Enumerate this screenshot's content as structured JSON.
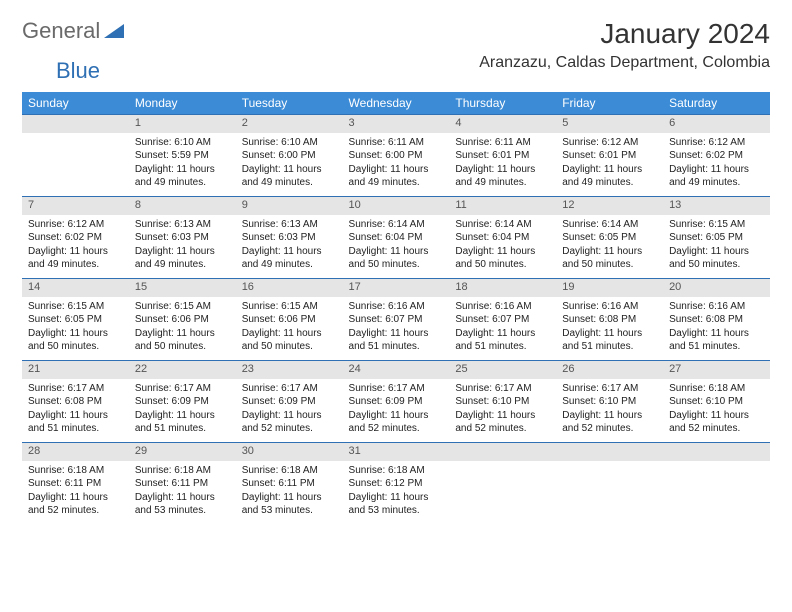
{
  "brand": {
    "general": "General",
    "blue": "Blue",
    "triangle_color": "#2f6fb3"
  },
  "title": "January 2024",
  "location": "Aranzazu, Caldas Department, Colombia",
  "colors": {
    "header_bg": "#3b8bd6",
    "header_text": "#ffffff",
    "daynum_bg": "#e5e5e5",
    "daynum_border": "#2f6fb3",
    "body_text": "#222222"
  },
  "fonts": {
    "title_size_pt": 21,
    "location_size_pt": 12,
    "weekday_size_pt": 9,
    "daynum_size_pt": 8,
    "detail_size_pt": 7.5
  },
  "weekdays": [
    "Sunday",
    "Monday",
    "Tuesday",
    "Wednesday",
    "Thursday",
    "Friday",
    "Saturday"
  ],
  "weeks": [
    [
      null,
      {
        "n": "1",
        "sunrise": "6:10 AM",
        "sunset": "5:59 PM",
        "daylight": "11 hours and 49 minutes."
      },
      {
        "n": "2",
        "sunrise": "6:10 AM",
        "sunset": "6:00 PM",
        "daylight": "11 hours and 49 minutes."
      },
      {
        "n": "3",
        "sunrise": "6:11 AM",
        "sunset": "6:00 PM",
        "daylight": "11 hours and 49 minutes."
      },
      {
        "n": "4",
        "sunrise": "6:11 AM",
        "sunset": "6:01 PM",
        "daylight": "11 hours and 49 minutes."
      },
      {
        "n": "5",
        "sunrise": "6:12 AM",
        "sunset": "6:01 PM",
        "daylight": "11 hours and 49 minutes."
      },
      {
        "n": "6",
        "sunrise": "6:12 AM",
        "sunset": "6:02 PM",
        "daylight": "11 hours and 49 minutes."
      }
    ],
    [
      {
        "n": "7",
        "sunrise": "6:12 AM",
        "sunset": "6:02 PM",
        "daylight": "11 hours and 49 minutes."
      },
      {
        "n": "8",
        "sunrise": "6:13 AM",
        "sunset": "6:03 PM",
        "daylight": "11 hours and 49 minutes."
      },
      {
        "n": "9",
        "sunrise": "6:13 AM",
        "sunset": "6:03 PM",
        "daylight": "11 hours and 49 minutes."
      },
      {
        "n": "10",
        "sunrise": "6:14 AM",
        "sunset": "6:04 PM",
        "daylight": "11 hours and 50 minutes."
      },
      {
        "n": "11",
        "sunrise": "6:14 AM",
        "sunset": "6:04 PM",
        "daylight": "11 hours and 50 minutes."
      },
      {
        "n": "12",
        "sunrise": "6:14 AM",
        "sunset": "6:05 PM",
        "daylight": "11 hours and 50 minutes."
      },
      {
        "n": "13",
        "sunrise": "6:15 AM",
        "sunset": "6:05 PM",
        "daylight": "11 hours and 50 minutes."
      }
    ],
    [
      {
        "n": "14",
        "sunrise": "6:15 AM",
        "sunset": "6:05 PM",
        "daylight": "11 hours and 50 minutes."
      },
      {
        "n": "15",
        "sunrise": "6:15 AM",
        "sunset": "6:06 PM",
        "daylight": "11 hours and 50 minutes."
      },
      {
        "n": "16",
        "sunrise": "6:15 AM",
        "sunset": "6:06 PM",
        "daylight": "11 hours and 50 minutes."
      },
      {
        "n": "17",
        "sunrise": "6:16 AM",
        "sunset": "6:07 PM",
        "daylight": "11 hours and 51 minutes."
      },
      {
        "n": "18",
        "sunrise": "6:16 AM",
        "sunset": "6:07 PM",
        "daylight": "11 hours and 51 minutes."
      },
      {
        "n": "19",
        "sunrise": "6:16 AM",
        "sunset": "6:08 PM",
        "daylight": "11 hours and 51 minutes."
      },
      {
        "n": "20",
        "sunrise": "6:16 AM",
        "sunset": "6:08 PM",
        "daylight": "11 hours and 51 minutes."
      }
    ],
    [
      {
        "n": "21",
        "sunrise": "6:17 AM",
        "sunset": "6:08 PM",
        "daylight": "11 hours and 51 minutes."
      },
      {
        "n": "22",
        "sunrise": "6:17 AM",
        "sunset": "6:09 PM",
        "daylight": "11 hours and 51 minutes."
      },
      {
        "n": "23",
        "sunrise": "6:17 AM",
        "sunset": "6:09 PM",
        "daylight": "11 hours and 52 minutes."
      },
      {
        "n": "24",
        "sunrise": "6:17 AM",
        "sunset": "6:09 PM",
        "daylight": "11 hours and 52 minutes."
      },
      {
        "n": "25",
        "sunrise": "6:17 AM",
        "sunset": "6:10 PM",
        "daylight": "11 hours and 52 minutes."
      },
      {
        "n": "26",
        "sunrise": "6:17 AM",
        "sunset": "6:10 PM",
        "daylight": "11 hours and 52 minutes."
      },
      {
        "n": "27",
        "sunrise": "6:18 AM",
        "sunset": "6:10 PM",
        "daylight": "11 hours and 52 minutes."
      }
    ],
    [
      {
        "n": "28",
        "sunrise": "6:18 AM",
        "sunset": "6:11 PM",
        "daylight": "11 hours and 52 minutes."
      },
      {
        "n": "29",
        "sunrise": "6:18 AM",
        "sunset": "6:11 PM",
        "daylight": "11 hours and 53 minutes."
      },
      {
        "n": "30",
        "sunrise": "6:18 AM",
        "sunset": "6:11 PM",
        "daylight": "11 hours and 53 minutes."
      },
      {
        "n": "31",
        "sunrise": "6:18 AM",
        "sunset": "6:12 PM",
        "daylight": "11 hours and 53 minutes."
      },
      null,
      null,
      null
    ]
  ],
  "labels": {
    "sunrise": "Sunrise:",
    "sunset": "Sunset:",
    "daylight": "Daylight:"
  }
}
